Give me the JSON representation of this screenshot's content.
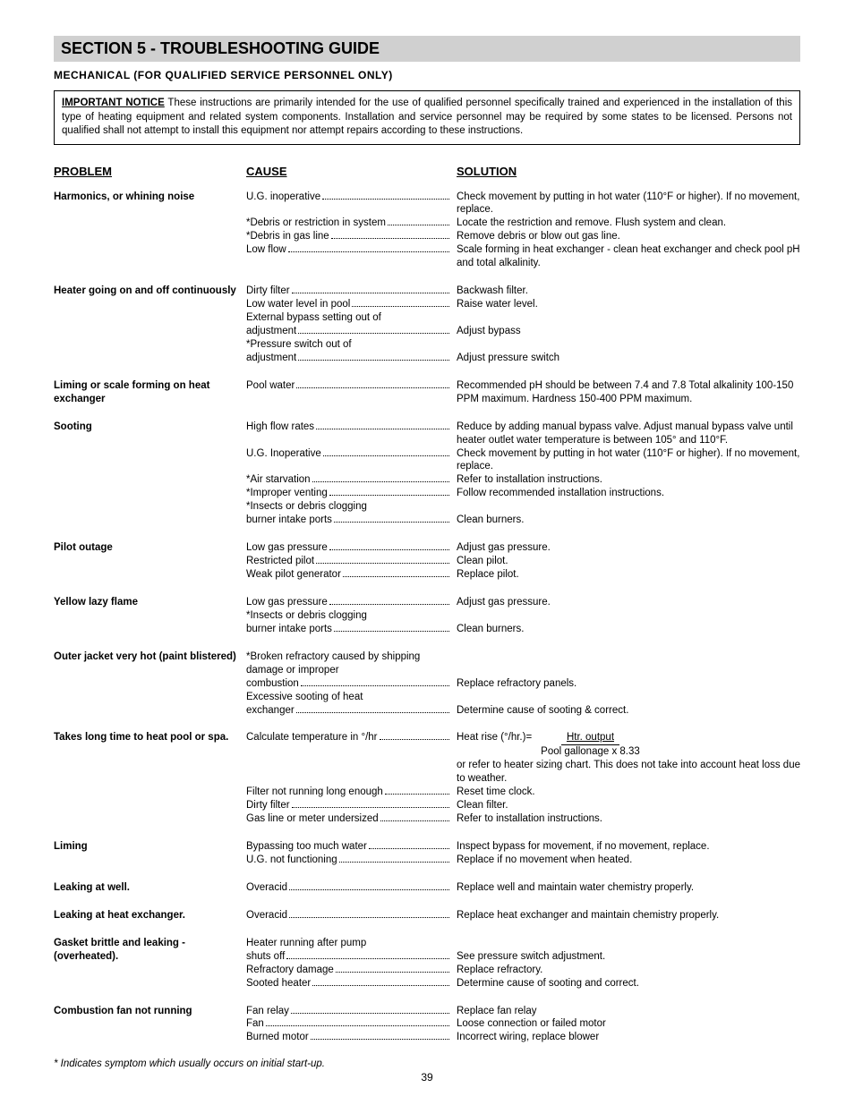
{
  "header": {
    "section_title": "SECTION 5 - TROUBLESHOOTING GUIDE",
    "subheader": "MECHANICAL (FOR QUALIFIED SERVICE PERSONNEL ONLY)",
    "notice_title": "IMPORTANT NOTICE",
    "notice_body": " These instructions are primarily intended for the use of qualified personnel specifically trained and experienced in the installation of this type of heating equipment and related system components. Installation and service personnel may be required by some states to be licensed. Persons not qualified shall not attempt to install this equipment nor attempt repairs according to these instructions."
  },
  "columns": {
    "problem": "PROBLEM",
    "cause": "CAUSE",
    "solution": "SOLUTION"
  },
  "rows": [
    {
      "problem": "Harmonics, or whining noise",
      "pairs": [
        {
          "cause_pre": "",
          "cause": "U.G. inoperative",
          "solution": "Check movement by putting in hot water (110°F or higher). If no movement, replace."
        },
        {
          "cause_pre": "",
          "cause": "*Debris or restriction in system",
          "solution": "Locate the restriction and remove. Flush system and clean."
        },
        {
          "cause_pre": "",
          "cause": "*Debris in gas line",
          "solution": "Remove debris or blow out gas line."
        },
        {
          "cause_pre": "",
          "cause": "Low flow",
          "solution": "Scale forming in heat exchanger - clean heat exchanger and check pool pH and total alkalinity."
        }
      ]
    },
    {
      "problem": "Heater going on and off continuously",
      "pairs": [
        {
          "cause_pre": "",
          "cause": "Dirty filter",
          "solution": "Backwash filter."
        },
        {
          "cause_pre": "",
          "cause": "Low water level in pool",
          "solution": "Raise water level."
        },
        {
          "cause_pre": "External bypass setting out of",
          "cause": " adjustment",
          "solution": "Adjust bypass"
        },
        {
          "cause_pre": "*Pressure switch out of",
          "cause": " adjustment",
          "solution": "Adjust pressure switch"
        }
      ]
    },
    {
      "problem": "Liming or scale forming on heat exchanger",
      "pairs": [
        {
          "cause_pre": "",
          "cause": "Pool water",
          "solution": "Recommended pH should be between 7.4 and 7.8 Total alkalinity 100-150 PPM maximum. Hardness 150-400 PPM maximum."
        }
      ]
    },
    {
      "problem": "Sooting",
      "pairs": [
        {
          "cause_pre": "",
          "cause": "High flow rates",
          "solution": "Reduce by adding manual bypass valve. Adjust manual bypass valve until heater outlet water temperature is between 105° and 110°F."
        },
        {
          "cause_pre": "",
          "cause": "U.G. Inoperative",
          "solution": "Check movement by putting in hot water (110°F or higher). If no movement, replace."
        },
        {
          "cause_pre": "",
          "cause": "*Air starvation",
          "solution": "Refer to installation instructions."
        },
        {
          "cause_pre": "",
          "cause": "*Improper venting",
          "solution": "Follow recommended installation instructions."
        },
        {
          "cause_pre": "*Insects or debris clogging",
          "cause": " burner intake ports",
          "solution": "Clean burners."
        }
      ]
    },
    {
      "problem": "Pilot outage",
      "pairs": [
        {
          "cause_pre": "",
          "cause": "Low gas pressure",
          "solution": "Adjust gas pressure."
        },
        {
          "cause_pre": "",
          "cause": "Restricted pilot",
          "solution": "Clean pilot."
        },
        {
          "cause_pre": "",
          "cause": "Weak pilot generator",
          "solution": "Replace pilot."
        }
      ]
    },
    {
      "problem": "Yellow lazy flame",
      "pairs": [
        {
          "cause_pre": "",
          "cause": "Low gas pressure",
          "solution": "Adjust gas pressure."
        },
        {
          "cause_pre": "*Insects or debris clogging",
          "cause": " burner intake ports",
          "solution": "Clean burners."
        }
      ]
    },
    {
      "problem": "Outer jacket very hot (paint blistered)",
      "pairs": [
        {
          "cause_pre": "*Broken refractory caused by shipping damage or improper",
          "cause": " combustion",
          "solution": "Replace refractory panels."
        },
        {
          "cause_pre": "Excessive sooting of heat",
          "cause": " exchanger",
          "solution": "Determine cause of sooting & correct."
        }
      ]
    },
    {
      "problem": "Takes long time to heat pool or spa.",
      "pairs": [
        {
          "cause_pre": "",
          "cause": "Calculate temperature in °/hr",
          "solution_formula": {
            "lead": "Heat rise (°/hr.)= ",
            "num": "Htr. output",
            "den": "Pool gallonage x 8.33",
            "tail": "or refer to heater sizing chart.  This does not take into account heat loss due  to weather."
          }
        },
        {
          "cause_pre": "",
          "cause": "Filter not running long enough",
          "solution": "Reset time clock."
        },
        {
          "cause_pre": "",
          "cause": "Dirty filter",
          "solution": "Clean filter."
        },
        {
          "cause_pre": "",
          "cause": "Gas line or meter undersized",
          "solution": "Refer to installation instructions."
        }
      ]
    },
    {
      "problem": "Liming",
      "pairs": [
        {
          "cause_pre": "",
          "cause": "Bypassing too much water",
          "solution": "Inspect bypass for movement, if no movement, replace."
        },
        {
          "cause_pre": "",
          "cause": "U.G. not functioning",
          "solution": "Replace if no movement when heated."
        }
      ]
    },
    {
      "problem": "Leaking at well.",
      "pairs": [
        {
          "cause_pre": "",
          "cause": "Overacid",
          "solution": "Replace well and maintain water chemistry properly."
        }
      ]
    },
    {
      "problem": "Leaking at heat exchanger.",
      "pairs": [
        {
          "cause_pre": "",
          "cause": "Overacid",
          "solution": "Replace heat exchanger and maintain chemistry properly."
        }
      ]
    },
    {
      "problem": "Gasket brittle and leaking - (overheated).",
      "pairs": [
        {
          "cause_pre": "Heater running after pump",
          "cause": " shuts off",
          "solution": "See pressure switch adjustment."
        },
        {
          "cause_pre": "",
          "cause": "Refractory damage",
          "solution": "Replace refractory."
        },
        {
          "cause_pre": "",
          "cause": "Sooted heater",
          "solution": "Determine cause of sooting and correct."
        }
      ]
    },
    {
      "problem": "Combustion fan not running",
      "pairs": [
        {
          "cause_pre": "",
          "cause": "Fan relay",
          "solution": "Replace fan relay"
        },
        {
          "cause_pre": "",
          "cause": "Fan",
          "solution": "Loose connection or failed motor"
        },
        {
          "cause_pre": "",
          "cause": "Burned motor ",
          "solution": "Incorrect wiring, replace blower"
        }
      ]
    }
  ],
  "footnote": "* Indicates symptom which usually occurs on initial start-up.",
  "page_number": "39"
}
